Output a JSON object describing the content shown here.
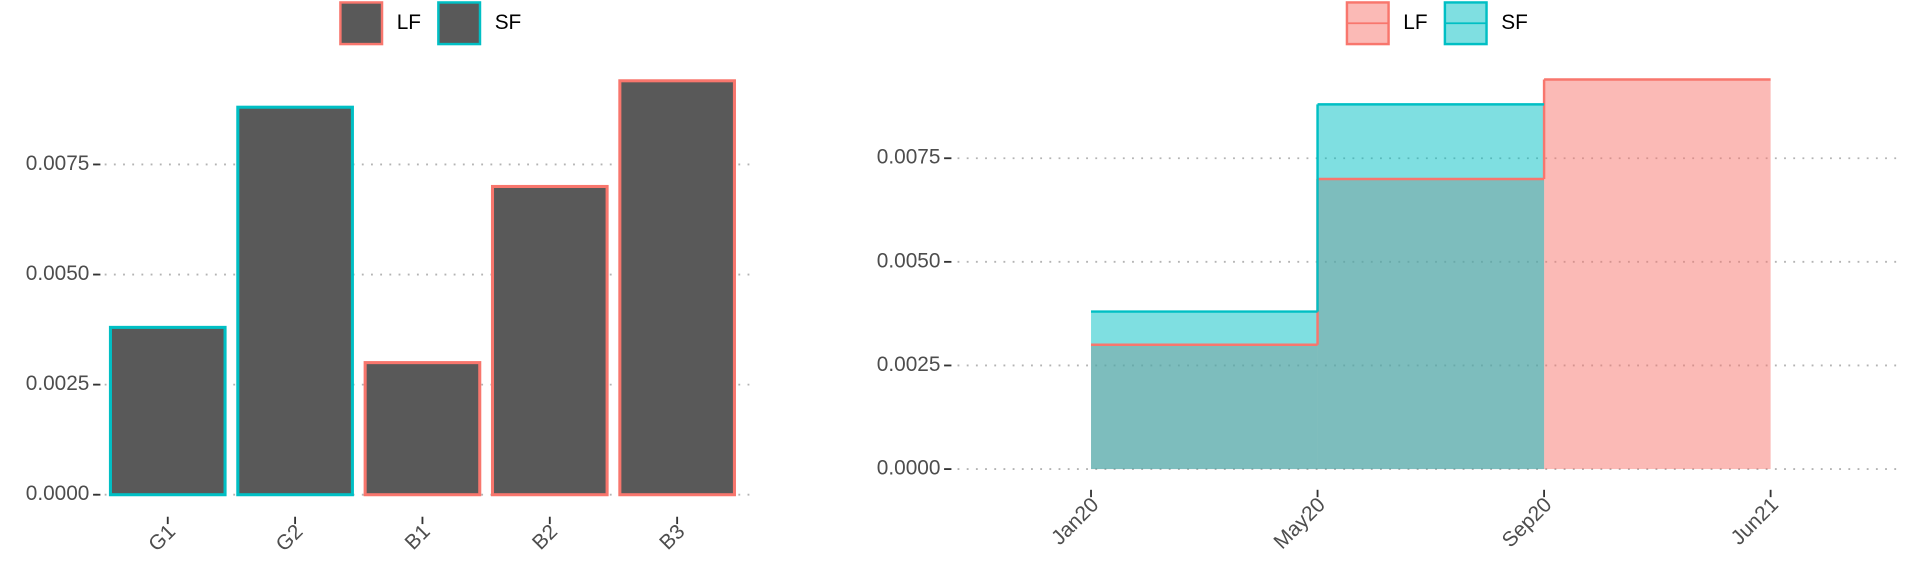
{
  "chart_data": [
    {
      "type": "bar",
      "categories": [
        "G1",
        "G2",
        "B1",
        "B2",
        "B3"
      ],
      "fill": "#595959",
      "series": [
        {
          "name": "LF",
          "color": "#F8766D",
          "values": [
            null,
            null,
            0.003,
            0.007,
            0.0094
          ]
        },
        {
          "name": "SF",
          "color": "#00BFC4",
          "values": [
            0.0038,
            0.0088,
            null,
            null,
            null
          ]
        }
      ],
      "ylim": [
        -0.0005,
        0.0099
      ],
      "yticks": [
        {
          "value": 0,
          "label": "0.0000"
        },
        {
          "value": 0.0025,
          "label": "0.0025"
        },
        {
          "value": 0.005,
          "label": "0.0050"
        },
        {
          "value": 0.0075,
          "label": "0.0075"
        }
      ],
      "grid": true
    },
    {
      "type": "step_area",
      "categories": [
        "Jan20",
        "May20",
        "Sep20",
        "Jun21"
      ],
      "series": [
        {
          "name": "LF",
          "color": "#F8766D",
          "values": [
            0.003,
            0.007,
            0.0094,
            null
          ]
        },
        {
          "name": "SF",
          "color": "#00BFC4",
          "values": [
            0.0038,
            0.0088,
            null,
            null
          ]
        }
      ],
      "ylim": [
        -0.0005,
        0.0099
      ],
      "yticks": [
        {
          "value": 0,
          "label": "0.0000"
        },
        {
          "value": 0.0025,
          "label": "0.0025"
        },
        {
          "value": 0.005,
          "label": "0.0050"
        },
        {
          "value": 0.0075,
          "label": "0.0075"
        }
      ],
      "grid": true
    }
  ]
}
